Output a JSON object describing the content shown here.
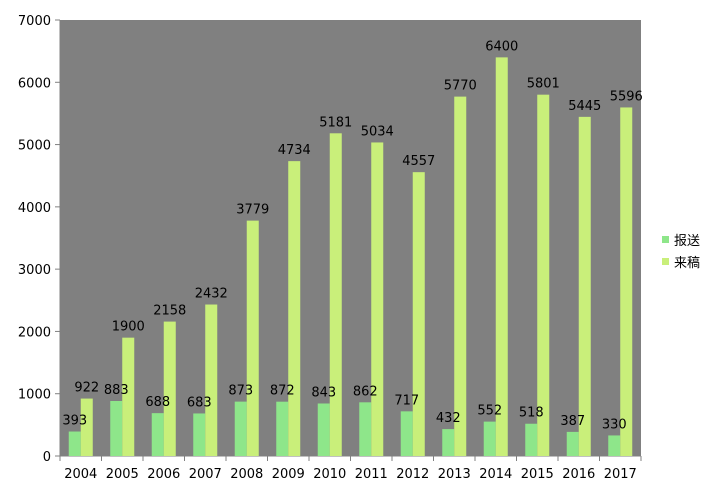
{
  "chart_data": {
    "type": "bar",
    "title": "",
    "xlabel": "",
    "ylabel": "",
    "categories": [
      "2004",
      "2005",
      "2006",
      "2007",
      "2008",
      "2009",
      "2010",
      "2011",
      "2012",
      "2013",
      "2014",
      "2015",
      "2016",
      "2017"
    ],
    "series": [
      {
        "name": "报送",
        "color": "#8ee68a",
        "values": [
          393,
          883,
          688,
          683,
          873,
          872,
          843,
          862,
          717,
          432,
          552,
          518,
          387,
          330
        ]
      },
      {
        "name": "来稿",
        "color": "#c9ef7a",
        "values": [
          922,
          1900,
          2158,
          2432,
          3779,
          4734,
          5181,
          5034,
          4557,
          5770,
          6400,
          5801,
          5445,
          5596
        ]
      }
    ],
    "ylim": [
      0,
      7000
    ],
    "yticks": [
      "0",
      "1000",
      "2000",
      "3000",
      "4000",
      "5000",
      "6000",
      "7000"
    ],
    "grid": false,
    "legend_position": "right",
    "plot_background": "#808080"
  }
}
